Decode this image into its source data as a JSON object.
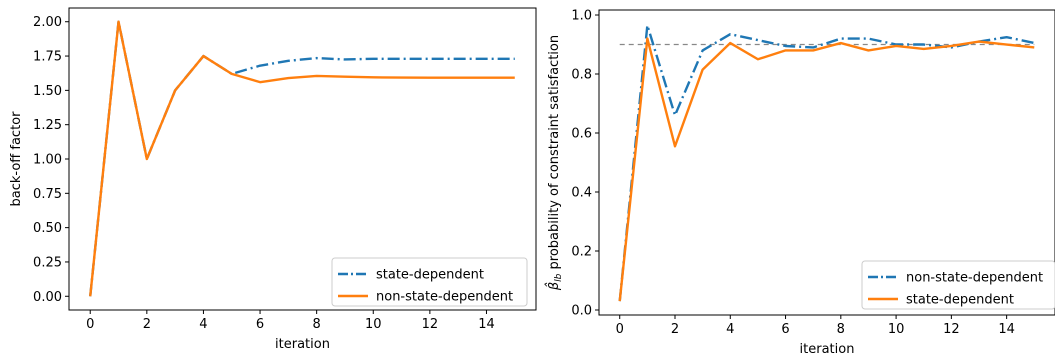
{
  "chart_data": [
    {
      "type": "line",
      "xlabel": "iteration",
      "ylabel": "back-off factor",
      "xlim": [
        -0.75,
        15.75
      ],
      "ylim": [
        -0.1,
        2.1
      ],
      "xticks": [
        0,
        2,
        4,
        6,
        8,
        10,
        12,
        14
      ],
      "xtick_labels": [
        "0",
        "2",
        "4",
        "6",
        "8",
        "10",
        "12",
        "14"
      ],
      "yticks": [
        0.0,
        0.25,
        0.5,
        0.75,
        1.0,
        1.25,
        1.5,
        1.75,
        2.0
      ],
      "ytick_labels": [
        "0.00",
        "0.25",
        "0.50",
        "0.75",
        "1.00",
        "1.25",
        "1.50",
        "1.75",
        "2.00"
      ],
      "legend_position": "lower-right",
      "grid": false,
      "series": [
        {
          "name": "state-dependent",
          "color": "#1f77b4",
          "style": "dashdot",
          "x": [
            0,
            1,
            2,
            3,
            4,
            5,
            6,
            7,
            8,
            9,
            10,
            11,
            12,
            13,
            14,
            15
          ],
          "y": [
            0.0,
            2.0,
            1.0,
            1.5,
            1.75,
            1.62,
            1.68,
            1.715,
            1.735,
            1.725,
            1.73,
            1.73,
            1.73,
            1.73,
            1.73,
            1.73
          ]
        },
        {
          "name": "non-state-dependent",
          "color": "#ff7f0e",
          "style": "solid",
          "x": [
            0,
            1,
            2,
            3,
            4,
            5,
            6,
            7,
            8,
            9,
            10,
            11,
            12,
            13,
            14,
            15
          ],
          "y": [
            0.0,
            2.0,
            1.0,
            1.5,
            1.75,
            1.62,
            1.56,
            1.59,
            1.605,
            1.6,
            1.595,
            1.593,
            1.592,
            1.592,
            1.592,
            1.592
          ]
        }
      ]
    },
    {
      "type": "line",
      "xlabel": "iteration",
      "ylabel_symbol": "β̂",
      "ylabel_subscript": "lb",
      "ylabel": " probability of constraint satisfaction",
      "xlim": [
        -0.75,
        15.75
      ],
      "ylim": [
        -0.017,
        1.017
      ],
      "xticks": [
        0,
        2,
        4,
        6,
        8,
        10,
        12,
        14
      ],
      "xtick_labels": [
        "0",
        "2",
        "4",
        "6",
        "8",
        "10",
        "12",
        "14"
      ],
      "yticks": [
        0.0,
        0.2,
        0.4,
        0.6,
        0.8,
        1.0
      ],
      "ytick_labels": [
        "0.0",
        "0.2",
        "0.4",
        "0.6",
        "0.8",
        "1.0"
      ],
      "reference_line": {
        "y": 0.9,
        "color": "#888888",
        "style": "dashed"
      },
      "legend_position": "lower-right",
      "grid": false,
      "series": [
        {
          "name": "non-state-dependent",
          "color": "#1f77b4",
          "style": "dashdot",
          "x": [
            0,
            1,
            2,
            3,
            4,
            5,
            6,
            7,
            8,
            9,
            10,
            11,
            12,
            13,
            14,
            15
          ],
          "y": [
            0.03,
            0.965,
            0.66,
            0.88,
            0.935,
            0.915,
            0.895,
            0.89,
            0.92,
            0.92,
            0.9,
            0.9,
            0.89,
            0.91,
            0.925,
            0.905
          ]
        },
        {
          "name": "state-dependent",
          "color": "#ff7f0e",
          "style": "solid",
          "x": [
            0,
            1,
            2,
            3,
            4,
            5,
            6,
            7,
            8,
            9,
            10,
            11,
            12,
            13,
            14,
            15
          ],
          "y": [
            0.03,
            0.92,
            0.555,
            0.815,
            0.905,
            0.85,
            0.88,
            0.88,
            0.905,
            0.88,
            0.895,
            0.885,
            0.895,
            0.91,
            0.9,
            0.89
          ]
        }
      ]
    }
  ]
}
